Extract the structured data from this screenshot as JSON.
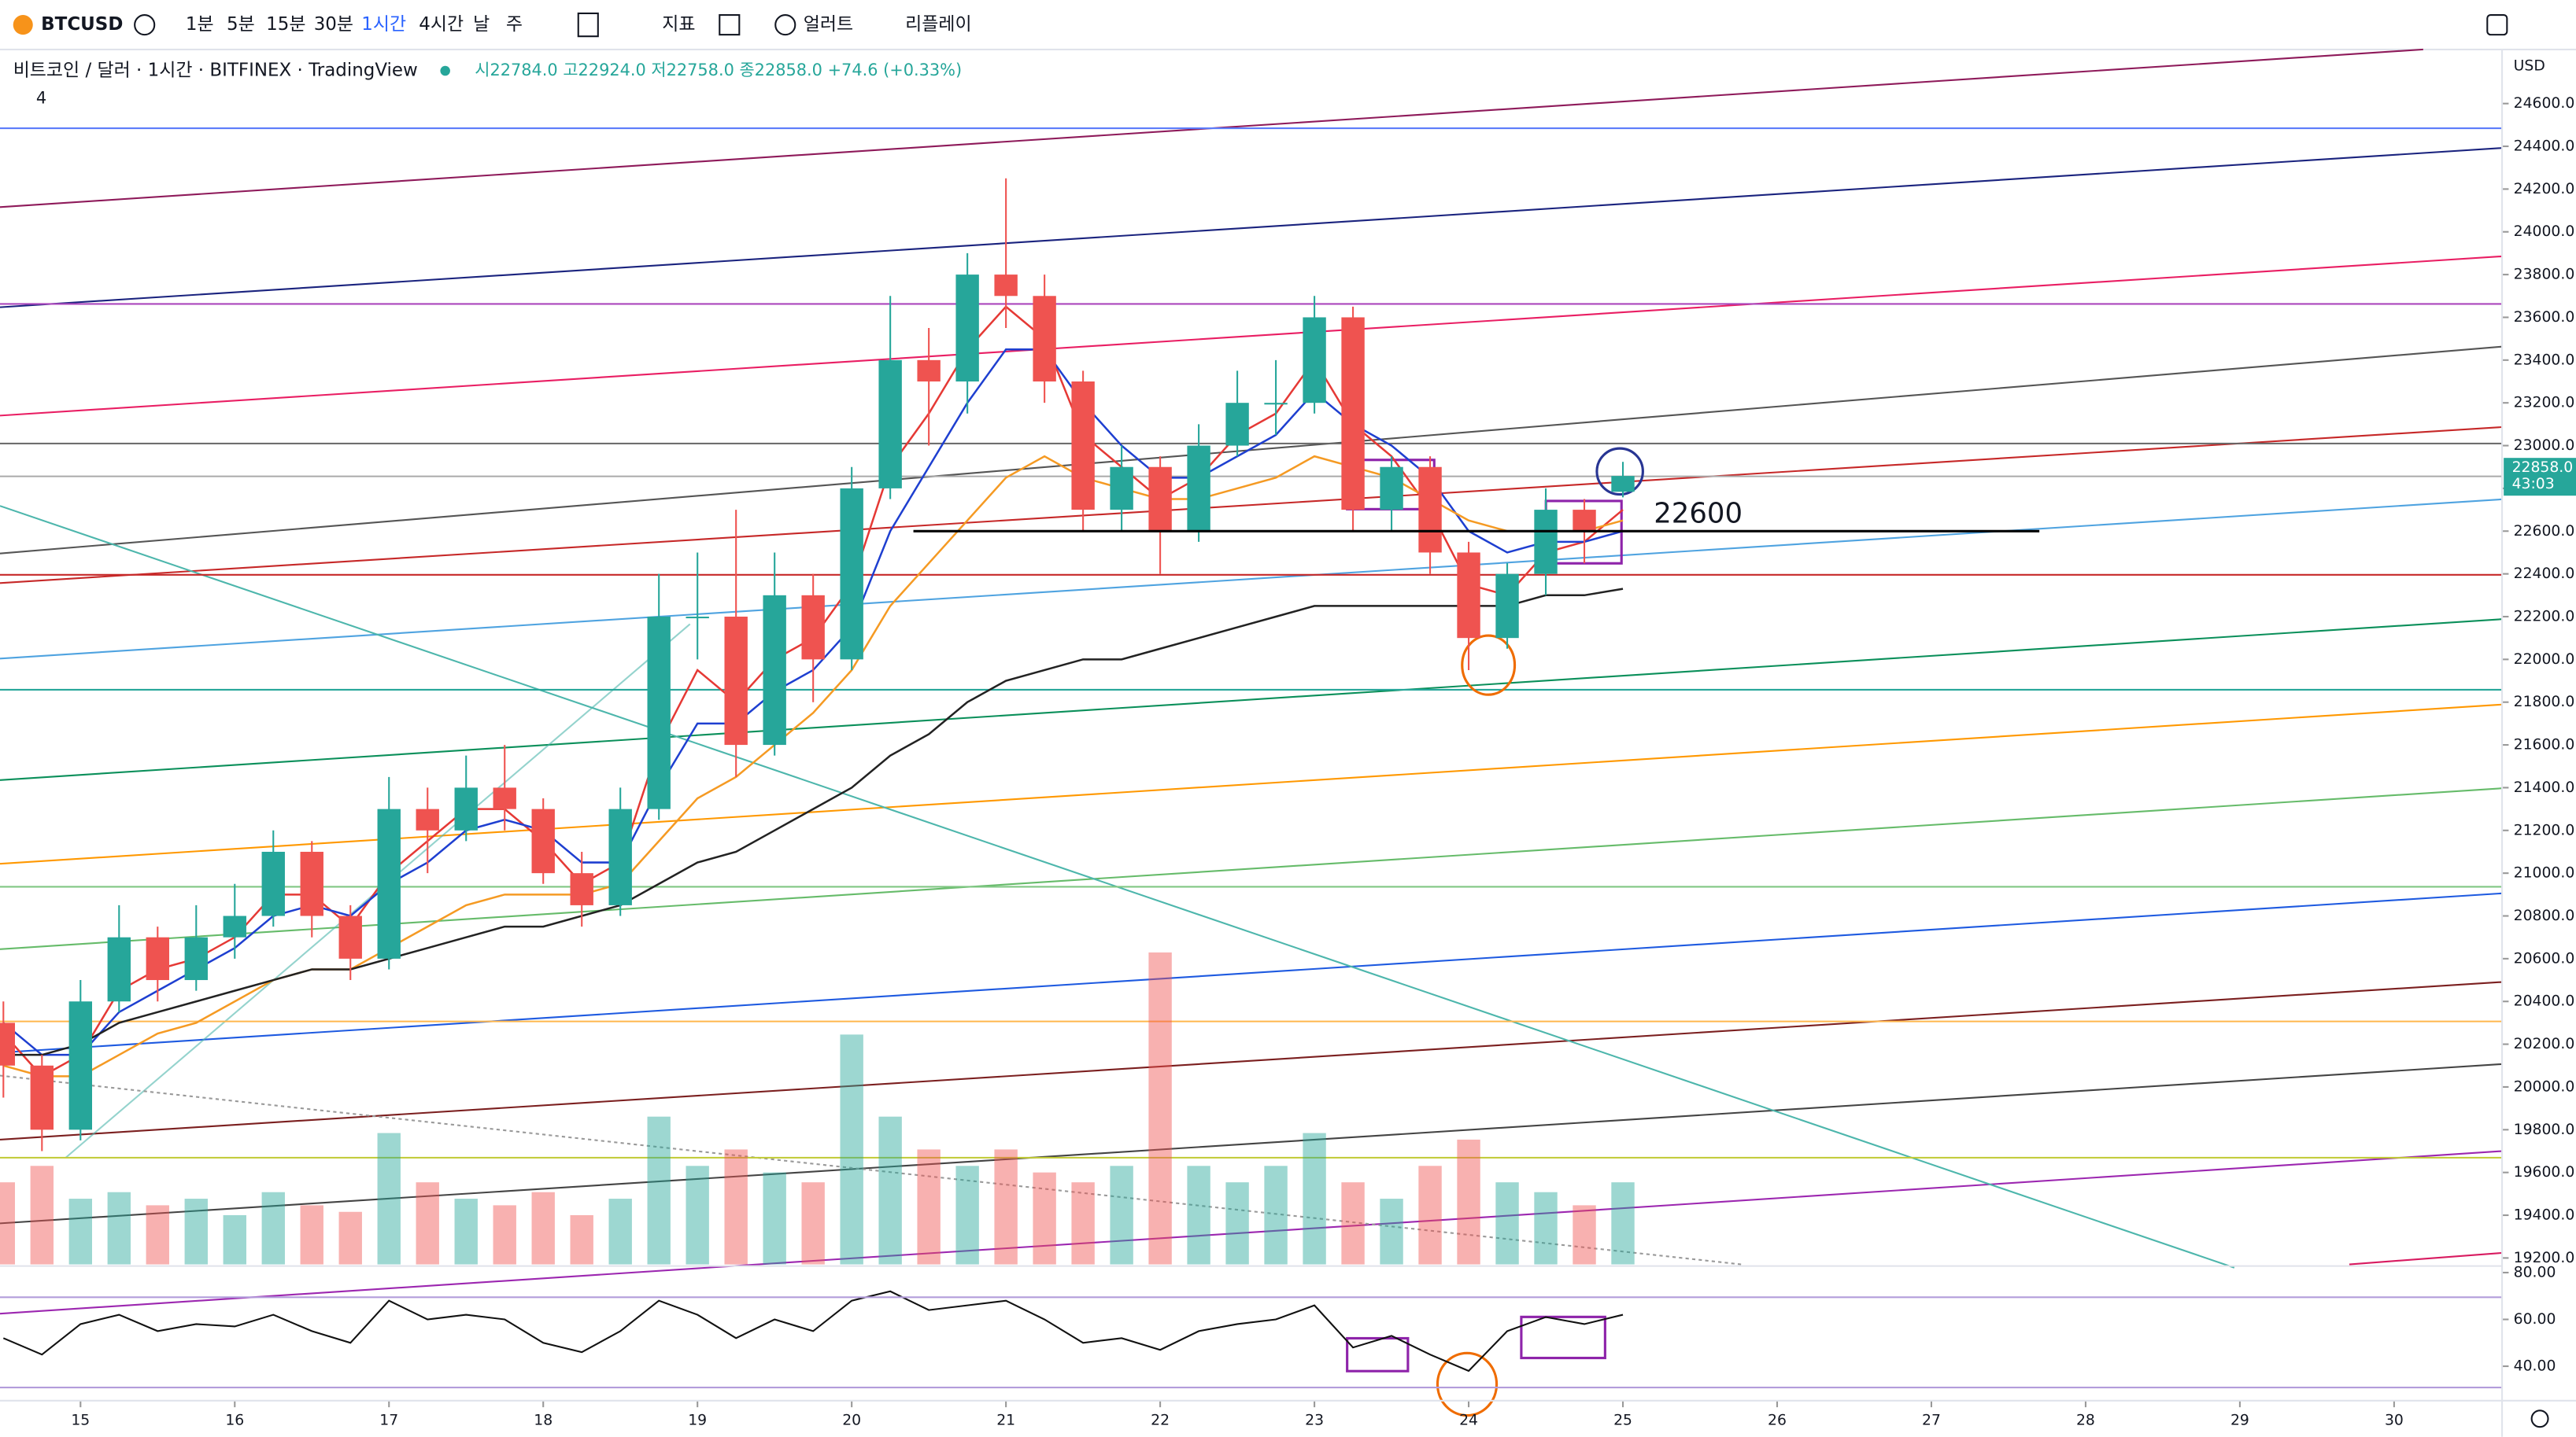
{
  "toolbar": {
    "symbol": "BTCUSD",
    "intervals": [
      "1분",
      "5분",
      "15분",
      "30분",
      "1시간",
      "4시간",
      "날",
      "주"
    ],
    "indicators": "지표",
    "alert": "얼러트",
    "replay": "리플레이"
  },
  "legend": {
    "title": "비트코인 / 달러 · 1시간 · BITFINEX · TradingView",
    "ohlc": "시22784.0 고22924.0 저22758.0 종22858.0 +74.6 (+0.33%)",
    "count": "4"
  },
  "price_axis": {
    "currency": "USD",
    "last_price": "22858.0",
    "countdown": "43:03"
  },
  "chart_data": {
    "type": "candlestick",
    "x": [
      14.5,
      14.75,
      15,
      15.25,
      15.5,
      15.75,
      16,
      16.25,
      16.5,
      16.75,
      17,
      17.25,
      17.5,
      17.75,
      18,
      18.25,
      18.5,
      18.75,
      19,
      19.25,
      19.5,
      19.75,
      20,
      20.25,
      20.5,
      20.75,
      21,
      21.25,
      21.5,
      21.75,
      22,
      22.25,
      22.5,
      22.75,
      23,
      23.25,
      23.5,
      23.75,
      24,
      24.25,
      24.5,
      24.75,
      25
    ],
    "open": [
      20300,
      20100,
      19800,
      20400,
      20700,
      20500,
      20700,
      20800,
      21100,
      20800,
      20600,
      21300,
      21200,
      21400,
      21300,
      21000,
      20850,
      21300,
      22200,
      22200,
      21600,
      22300,
      22000,
      22800,
      23400,
      23300,
      23800,
      23700,
      23300,
      22700,
      22900,
      22600,
      23000,
      23200,
      23200,
      23600,
      22700,
      22900,
      22500,
      22100,
      22400,
      22700,
      22784
    ],
    "high": [
      20400,
      20150,
      20500,
      20850,
      20750,
      20850,
      20950,
      21200,
      21150,
      20850,
      21450,
      21400,
      21550,
      21600,
      21350,
      21100,
      21400,
      22400,
      22500,
      22700,
      22500,
      22400,
      22900,
      23700,
      23550,
      23900,
      24250,
      23800,
      23350,
      23000,
      22950,
      23100,
      23350,
      23400,
      23700,
      23650,
      22950,
      22950,
      22550,
      22450,
      22800,
      22750,
      22924
    ],
    "low": [
      19950,
      19700,
      19750,
      20350,
      20400,
      20450,
      20600,
      20750,
      20700,
      20500,
      20550,
      21000,
      21150,
      21200,
      20950,
      20750,
      20800,
      21250,
      22000,
      21450,
      21550,
      21800,
      21950,
      22750,
      23000,
      23150,
      23550,
      23200,
      22600,
      22600,
      22400,
      22550,
      22950,
      23050,
      23150,
      22600,
      22600,
      22400,
      21950,
      22050,
      22300,
      22450,
      22758
    ],
    "close": [
      20100,
      19800,
      20400,
      20700,
      20500,
      20700,
      20800,
      21100,
      20800,
      20600,
      21300,
      21200,
      21400,
      21300,
      21000,
      20850,
      21300,
      22200,
      22200,
      21600,
      22300,
      22000,
      22800,
      23400,
      23300,
      23800,
      23700,
      23300,
      22700,
      22900,
      22600,
      23000,
      23200,
      23200,
      23600,
      22700,
      22900,
      22500,
      22100,
      22400,
      22700,
      22600,
      22858
    ],
    "up_color": "#26a69a",
    "down_color": "#ef5350",
    "series": [
      {
        "color": "#e53935",
        "values": [
          20250,
          20050,
          20150,
          20450,
          20550,
          20600,
          20700,
          20900,
          20900,
          20750,
          21000,
          21150,
          21300,
          21300,
          21150,
          20950,
          21050,
          21600,
          21950,
          21800,
          22000,
          22100,
          22350,
          22900,
          23150,
          23450,
          23650,
          23500,
          23050,
          22900,
          22750,
          22850,
          23050,
          23150,
          23400,
          23100,
          22950,
          22700,
          22350,
          22300,
          22500,
          22550,
          22700
        ]
      },
      {
        "color": "#1e3fd0",
        "values": [
          20300,
          20150,
          20150,
          20350,
          20450,
          20550,
          20650,
          20800,
          20850,
          20800,
          20950,
          21050,
          21200,
          21250,
          21200,
          21050,
          21050,
          21400,
          21700,
          21700,
          21850,
          21950,
          22150,
          22600,
          22900,
          23200,
          23450,
          23450,
          23200,
          23000,
          22850,
          22850,
          22950,
          23050,
          23250,
          23100,
          23000,
          22850,
          22600,
          22500,
          22550,
          22550,
          22600
        ]
      },
      {
        "color": "#f59a23",
        "values": [
          20100,
          20050,
          20050,
          20150,
          20250,
          20300,
          20400,
          20500,
          20550,
          20550,
          20650,
          20750,
          20850,
          20900,
          20900,
          20900,
          20950,
          21150,
          21350,
          21450,
          21600,
          21750,
          21950,
          22250,
          22450,
          22650,
          22850,
          22950,
          22850,
          22800,
          22750,
          22750,
          22800,
          22850,
          22950,
          22900,
          22850,
          22750,
          22650,
          22600,
          22600,
          22600,
          22650
        ]
      },
      {
        "color": "#222222",
        "values": [
          20150,
          20150,
          20200,
          20300,
          20350,
          20400,
          20450,
          20500,
          20550,
          20550,
          20600,
          20650,
          20700,
          20750,
          20750,
          20800,
          20850,
          20950,
          21050,
          21100,
          21200,
          21300,
          21400,
          21550,
          21650,
          21800,
          21900,
          21950,
          22000,
          22000,
          22050,
          22100,
          22150,
          22200,
          22250,
          22250,
          22250,
          22250,
          22250,
          22250,
          22300,
          22300,
          22330
        ]
      }
    ],
    "volume": [
      25,
      30,
      20,
      22,
      18,
      20,
      15,
      22,
      18,
      16,
      40,
      25,
      20,
      18,
      22,
      15,
      20,
      45,
      30,
      35,
      28,
      25,
      70,
      45,
      35,
      30,
      35,
      28,
      25,
      30,
      95,
      30,
      25,
      30,
      40,
      25,
      20,
      30,
      38,
      25,
      22,
      18,
      25
    ],
    "annotation": 22600,
    "xlim": [
      14.478,
      30.7
    ],
    "xticks": [
      15,
      16,
      17,
      18,
      19,
      20,
      21,
      22,
      23,
      24,
      25,
      26,
      27,
      28,
      29,
      30
    ],
    "ylim": [
      19170,
      24853
    ],
    "yticks": [
      {
        "value": 19200,
        "label": "19200.0"
      },
      {
        "value": 19400,
        "label": "19400.0"
      },
      {
        "value": 19600,
        "label": "19600.0"
      },
      {
        "value": 19800,
        "label": "19800.0"
      },
      {
        "value": 20000,
        "label": "20000.0"
      },
      {
        "value": 20200,
        "label": "20200.0"
      },
      {
        "value": 20400,
        "label": "20400.0"
      },
      {
        "value": 20600,
        "label": "20600.0"
      },
      {
        "value": 20800,
        "label": "20800.0"
      },
      {
        "value": 21000,
        "label": "21000.0"
      },
      {
        "value": 21200,
        "label": "21200.0"
      },
      {
        "value": 21400,
        "label": "21400.0"
      },
      {
        "value": 21600,
        "label": "21600.0"
      },
      {
        "value": 21800,
        "label": "21800.0"
      },
      {
        "value": 22000,
        "label": "22000.0"
      },
      {
        "value": 22200,
        "label": "22200.0"
      },
      {
        "value": 22400,
        "label": "22400.0"
      },
      {
        "value": 22600,
        "label": "22600.0"
      },
      {
        "value": 22800,
        "label": "22800.0"
      },
      {
        "value": 23000,
        "label": "23000.0"
      },
      {
        "value": 23200,
        "label": "23200.0"
      },
      {
        "value": 23400,
        "label": "23400.0"
      },
      {
        "value": 23600,
        "label": "23600.0"
      },
      {
        "value": 23800,
        "label": "23800.0"
      },
      {
        "value": 24000,
        "label": "24000.0"
      },
      {
        "value": 24200,
        "label": "24200.0"
      },
      {
        "value": 24400,
        "label": "24400.0"
      },
      {
        "value": 24600,
        "label": "24600.0"
      }
    ],
    "rsi": {
      "color": "#111111",
      "values": [
        52,
        45,
        58,
        62,
        55,
        58,
        57,
        62,
        55,
        50,
        68,
        60,
        62,
        60,
        50,
        46,
        55,
        68,
        62,
        52,
        60,
        55,
        68,
        72,
        64,
        66,
        68,
        60,
        50,
        52,
        47,
        55,
        58,
        60,
        66,
        48,
        53,
        45,
        38,
        55,
        61,
        58,
        62
      ],
      "ylim": [
        27.4,
        82.1
      ],
      "yticks": [
        {
          "value": 80,
          "label": "80.00"
        },
        {
          "value": 60,
          "label": "60.00"
        },
        {
          "value": 40,
          "label": "40.00"
        }
      ]
    }
  }
}
